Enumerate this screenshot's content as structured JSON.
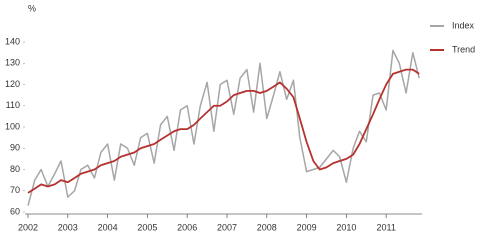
{
  "chart_data": {
    "type": "line",
    "y_unit": "%",
    "x": [
      2002,
      2002.17,
      2002.33,
      2002.5,
      2002.67,
      2002.83,
      2003,
      2003.17,
      2003.33,
      2003.5,
      2003.67,
      2003.83,
      2004,
      2004.17,
      2004.33,
      2004.5,
      2004.67,
      2004.83,
      2005,
      2005.17,
      2005.33,
      2005.5,
      2005.67,
      2005.83,
      2006,
      2006.17,
      2006.33,
      2006.5,
      2006.67,
      2006.83,
      2007,
      2007.17,
      2007.33,
      2007.5,
      2007.67,
      2007.83,
      2008,
      2008.17,
      2008.33,
      2008.5,
      2008.67,
      2008.83,
      2009,
      2009.17,
      2009.33,
      2009.5,
      2009.67,
      2009.83,
      2010,
      2010.17,
      2010.33,
      2010.5,
      2010.67,
      2010.83,
      2011,
      2011.17,
      2011.33,
      2011.5,
      2011.67,
      2011.83
    ],
    "series": [
      {
        "name": "Index",
        "color": "#a6a6a6",
        "values": [
          63,
          75,
          80,
          72,
          78,
          84,
          67,
          70,
          80,
          82,
          76,
          88,
          92,
          75,
          92,
          90,
          82,
          95,
          97,
          83,
          101,
          105,
          89,
          108,
          110,
          92,
          110,
          121,
          98,
          120,
          122,
          106,
          123,
          127,
          107,
          130,
          104,
          115,
          126,
          113,
          122,
          95,
          79,
          80,
          81,
          85,
          89,
          86,
          74,
          90,
          98,
          93,
          115,
          116,
          108,
          136,
          130,
          116,
          135,
          123
        ]
      },
      {
        "name": "Trend",
        "color": "#b5322e",
        "values": [
          69,
          71,
          73,
          72,
          73,
          75,
          74,
          76,
          78,
          79,
          80,
          82,
          83,
          84,
          86,
          87,
          88,
          90,
          91,
          92,
          94,
          96,
          98,
          99,
          99,
          101,
          104,
          107,
          110,
          110,
          112,
          115,
          116,
          117,
          117,
          116,
          117,
          119,
          121,
          118,
          114,
          104,
          93,
          84,
          80,
          81,
          83,
          84,
          85,
          87,
          92,
          99,
          106,
          113,
          120,
          125,
          126,
          127,
          127,
          125
        ]
      }
    ],
    "xlim": [
      2002,
      2011.85
    ],
    "xticks": [
      2002,
      2003,
      2004,
      2005,
      2006,
      2007,
      2008,
      2009,
      2010,
      2011
    ],
    "ylim": [
      60,
      140
    ],
    "yticks": [
      60,
      70,
      80,
      90,
      100,
      110,
      120,
      130,
      140
    ],
    "legend": "right"
  }
}
